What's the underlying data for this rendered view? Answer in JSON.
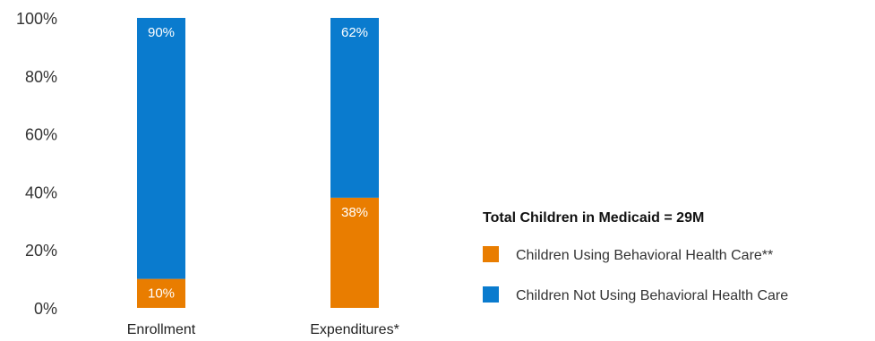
{
  "chart_data": {
    "type": "bar",
    "stacked": true,
    "percent": true,
    "categories": [
      "Enrollment",
      "Expenditures*"
    ],
    "series": [
      {
        "name": "Children Using Behavioral Health Care**",
        "values": [
          10,
          38
        ],
        "labels": [
          "10%",
          "38%"
        ],
        "color": "#E97D00"
      },
      {
        "name": "Children Not Using Behavioral Health Care",
        "values": [
          90,
          62
        ],
        "labels": [
          "90%",
          "62%"
        ],
        "color": "#0A7BCE"
      }
    ],
    "ylim": [
      0,
      100
    ],
    "yticks": [
      0,
      20,
      40,
      60,
      80,
      100
    ],
    "ytick_labels": [
      "0%",
      "20%",
      "40%",
      "60%",
      "80%",
      "100%"
    ],
    "legend": {
      "title": "Total Children in Medicaid = 29M",
      "placement": "right"
    },
    "grid": false
  }
}
